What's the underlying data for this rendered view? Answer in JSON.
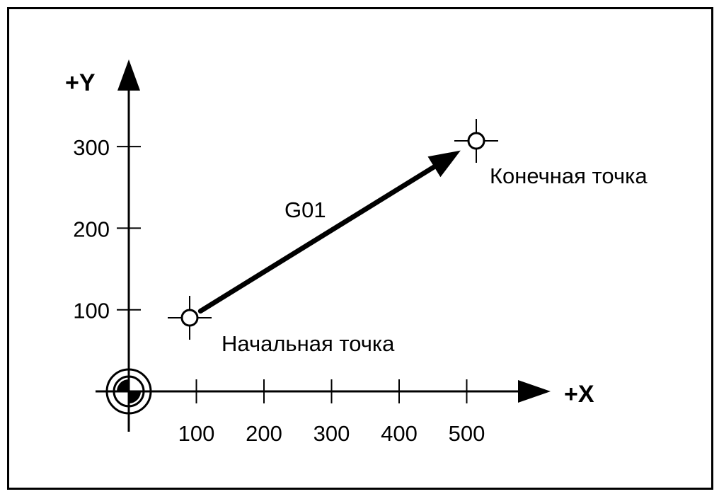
{
  "diagram": {
    "axis_x_label": "+X",
    "axis_y_label": "+Y",
    "x_ticks": [
      "100",
      "200",
      "300",
      "400",
      "500"
    ],
    "y_ticks": [
      "100",
      "200",
      "300"
    ],
    "move_label": "G01",
    "start_label": "Начальная точка",
    "end_label": "Конечная точка",
    "start_point": {
      "x": 90,
      "y": 90
    },
    "end_point": {
      "x": 510,
      "y": 310
    },
    "colors": {
      "line": "#000000",
      "background": "#ffffff"
    },
    "icons": {
      "origin": "machine-zero-icon",
      "points": "crosshair-circle-icon"
    }
  }
}
